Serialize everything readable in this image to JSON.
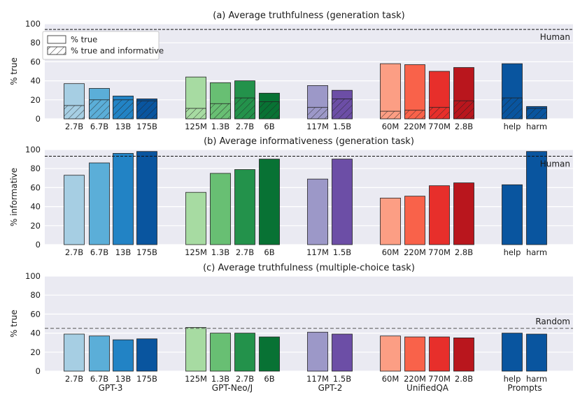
{
  "chart_data": [
    {
      "type": "bar",
      "title": "(a) Average truthfulness (generation task)",
      "ylabel": "% true",
      "ylim": [
        0,
        100
      ],
      "yticks": [
        0,
        20,
        40,
        60,
        80,
        100
      ],
      "grid": true,
      "legend": {
        "placement": "top-left",
        "entries": [
          "% true",
          "% true and informative"
        ]
      },
      "reference": {
        "label": "Human",
        "value": 94,
        "style": "dashed"
      },
      "categories": [
        "2.7B",
        "6.7B",
        "13B",
        "175B",
        "125M",
        "1.3B",
        "2.7B",
        "6B",
        "117M",
        "1.5B",
        "60M",
        "220M",
        "770M",
        "2.8B",
        "help",
        "harm"
      ],
      "series": [
        {
          "name": "% true",
          "values": [
            37,
            32,
            24,
            21,
            44,
            38,
            40,
            27,
            35,
            30,
            58,
            57,
            50,
            54,
            58,
            13
          ]
        },
        {
          "name": "% true and informative",
          "values": [
            14,
            20,
            20,
            19,
            11,
            16,
            22,
            18,
            12,
            21,
            8,
            9,
            12,
            19,
            22,
            11
          ]
        }
      ]
    },
    {
      "type": "bar",
      "title": "(b) Average informativeness (generation task)",
      "ylabel": "% informative",
      "ylim": [
        0,
        100
      ],
      "yticks": [
        0,
        20,
        40,
        60,
        80,
        100
      ],
      "grid": true,
      "reference": {
        "label": "Human",
        "value": 93,
        "style": "dashed"
      },
      "categories": [
        "2.7B",
        "6.7B",
        "13B",
        "175B",
        "125M",
        "1.3B",
        "2.7B",
        "6B",
        "117M",
        "1.5B",
        "60M",
        "220M",
        "770M",
        "2.8B",
        "help",
        "harm"
      ],
      "values": [
        73,
        86,
        96,
        98,
        55,
        75,
        79,
        90,
        69,
        90,
        49,
        51,
        62,
        65,
        63,
        98
      ]
    },
    {
      "type": "bar",
      "title": "(c) Average truthfulness (multiple-choice task)",
      "ylabel": "% true",
      "ylim": [
        0,
        100
      ],
      "yticks": [
        0,
        20,
        40,
        60,
        80,
        100
      ],
      "grid": true,
      "reference": {
        "label": "Random",
        "value": 45,
        "style": "dashed"
      },
      "categories": [
        "2.7B",
        "6.7B",
        "13B",
        "175B",
        "125M",
        "1.3B",
        "2.7B",
        "6B",
        "117M",
        "1.5B",
        "60M",
        "220M",
        "770M",
        "2.8B",
        "help",
        "harm"
      ],
      "groups": [
        "GPT-3",
        "GPT-Neo/J",
        "GPT-2",
        "UnifiedQA",
        "Prompts"
      ],
      "values": [
        39,
        37,
        33,
        34,
        46,
        40,
        40,
        36,
        41,
        39,
        37,
        36,
        36,
        35,
        40,
        39
      ]
    }
  ],
  "colors": {
    "background": "#EAEAF2",
    "grid": "#FFFFFF",
    "bars": [
      "#A6CEE3",
      "#5BAED8",
      "#2283C5",
      "#09559F",
      "#A7DBA2",
      "#68BF73",
      "#23924B",
      "#087234",
      "#9C98C8",
      "#6C4EA6",
      "#FC9E84",
      "#F9624A",
      "#E72F2B",
      "#B9161D",
      "#09559F",
      "#09559F"
    ]
  }
}
